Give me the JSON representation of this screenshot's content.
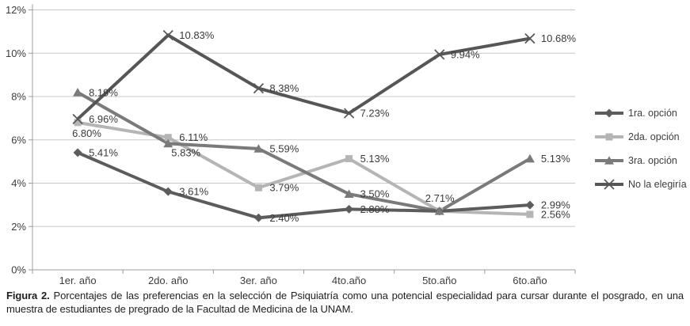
{
  "figure": {
    "caption_label": "Figura 2.",
    "caption_text": "Porcentajes de las preferencias en la selección de Psiquiatría como una potencial especialidad para cursar durante el posgrado, en una muestra de estudiantes de pregrado de la Facultad de Medicina de la UNAM."
  },
  "chart_data": {
    "type": "line",
    "title": "",
    "xlabel": "",
    "ylabel": "",
    "categories": [
      "1er. año",
      "2do. año",
      "3er. año",
      "4to.año",
      "5to.año",
      "6to.año"
    ],
    "series": [
      {
        "name": "1ra. opción",
        "marker": "diamond",
        "color": "#5c5c5c",
        "values": [
          5.41,
          3.61,
          2.4,
          2.8,
          2.71,
          2.99
        ],
        "point_labels": [
          "5.41%",
          "3.61%",
          "2.40%",
          "2.80%",
          null,
          "2.99%"
        ],
        "label_pos": [
          "right",
          "right",
          "right",
          "right",
          null,
          "right"
        ]
      },
      {
        "name": "2da. opción",
        "marker": "square",
        "color": "#b5b5b5",
        "values": [
          6.8,
          6.11,
          3.79,
          5.13,
          2.71,
          2.56
        ],
        "point_labels": [
          "6.80%",
          "6.11%",
          "3.79%",
          "5.13%",
          null,
          "2.56%"
        ],
        "label_pos": [
          "below",
          "right",
          "right",
          "right",
          null,
          "right"
        ]
      },
      {
        "name": "3ra. opción",
        "marker": "triangle",
        "color": "#7a7a7a",
        "values": [
          8.19,
          5.83,
          5.59,
          3.5,
          2.71,
          5.13
        ],
        "point_labels": [
          "8.19%",
          "5.83%",
          "5.59%",
          "3.50%",
          "2.71%",
          "5.13%"
        ],
        "label_pos": [
          "right",
          "below-right",
          "right",
          "right",
          "above",
          "right"
        ]
      },
      {
        "name": "No la elegiría",
        "marker": "x",
        "color": "#565656",
        "values": [
          6.96,
          10.83,
          8.38,
          7.23,
          9.94,
          10.68
        ],
        "point_labels": [
          "6.96%",
          "10.83%",
          "8.38%",
          "7.23%",
          "9.94%",
          "10.68%"
        ],
        "label_pos": [
          "right",
          "right",
          "right",
          "right",
          "right",
          "right"
        ]
      }
    ],
    "ylim": [
      0,
      12
    ],
    "y_tick_labels": [
      "0%",
      "2%",
      "4%",
      "6%",
      "8%",
      "10%",
      "12%"
    ],
    "grid": true,
    "legend_position": "right",
    "colors": {
      "grid": "#c8c8c8",
      "axis": "#9c9c9c",
      "text": "#3d3d3d"
    }
  }
}
